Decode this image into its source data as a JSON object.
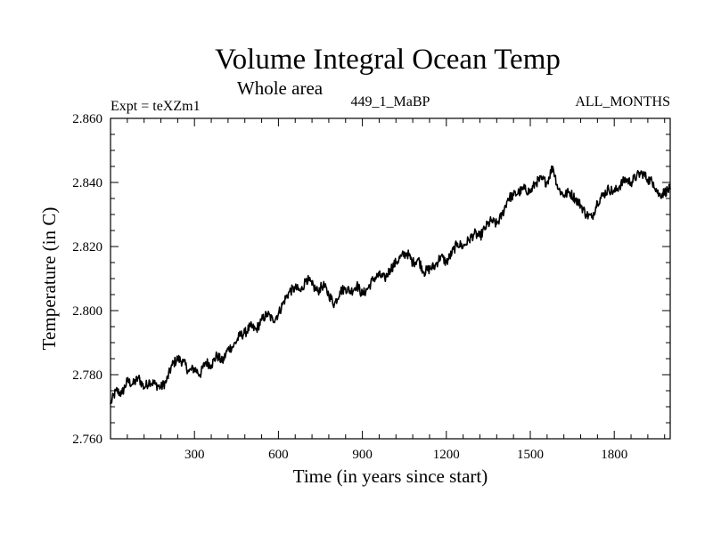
{
  "chart_data": {
    "type": "line",
    "title": "Volume Integral Ocean Temp",
    "subtitle": "Whole area",
    "left_label": "Expt = teXZm1",
    "center_label": "449_1_MaBP",
    "right_label": "ALL_MONTHS",
    "xlabel": "Time (in years since start)",
    "ylabel": "Temperature (in C)",
    "xlim": [
      0,
      2000
    ],
    "ylim": [
      2.76,
      2.86
    ],
    "x_ticks": [
      300,
      600,
      900,
      1200,
      1500,
      1800
    ],
    "x_tick_labels": [
      "300",
      "600",
      "900",
      "1200",
      "1500",
      "1800"
    ],
    "y_ticks": [
      2.76,
      2.78,
      2.8,
      2.82,
      2.84,
      2.86
    ],
    "y_tick_labels": [
      "2.760",
      "2.780",
      "2.800",
      "2.820",
      "2.840",
      "2.860"
    ],
    "grid": false,
    "series": [
      {
        "name": "Volume integral ocean temperature",
        "x": [
          0,
          20,
          40,
          60,
          80,
          100,
          120,
          140,
          160,
          180,
          200,
          220,
          240,
          260,
          280,
          300,
          320,
          340,
          360,
          380,
          400,
          420,
          440,
          460,
          480,
          500,
          520,
          540,
          560,
          580,
          600,
          620,
          640,
          660,
          680,
          700,
          720,
          740,
          760,
          780,
          800,
          820,
          840,
          860,
          880,
          900,
          920,
          940,
          960,
          980,
          1000,
          1020,
          1040,
          1060,
          1080,
          1100,
          1120,
          1140,
          1160,
          1180,
          1200,
          1220,
          1240,
          1260,
          1280,
          1300,
          1320,
          1340,
          1360,
          1380,
          1400,
          1420,
          1440,
          1460,
          1480,
          1500,
          1520,
          1540,
          1560,
          1580,
          1600,
          1620,
          1640,
          1660,
          1680,
          1700,
          1720,
          1740,
          1760,
          1780,
          1800,
          1820,
          1840,
          1860,
          1880,
          1900,
          1920,
          1940,
          1960,
          1980,
          2000
        ],
        "values": [
          2.771,
          2.775,
          2.774,
          2.778,
          2.777,
          2.779,
          2.776,
          2.778,
          2.777,
          2.776,
          2.778,
          2.783,
          2.785,
          2.784,
          2.781,
          2.782,
          2.78,
          2.784,
          2.783,
          2.786,
          2.784,
          2.788,
          2.789,
          2.792,
          2.793,
          2.795,
          2.794,
          2.797,
          2.799,
          2.797,
          2.799,
          2.803,
          2.806,
          2.807,
          2.806,
          2.81,
          2.808,
          2.806,
          2.808,
          2.805,
          2.802,
          2.806,
          2.807,
          2.806,
          2.808,
          2.805,
          2.807,
          2.81,
          2.811,
          2.81,
          2.813,
          2.815,
          2.817,
          2.818,
          2.815,
          2.816,
          2.812,
          2.813,
          2.814,
          2.817,
          2.815,
          2.818,
          2.821,
          2.82,
          2.822,
          2.824,
          2.823,
          2.826,
          2.828,
          2.827,
          2.83,
          2.835,
          2.836,
          2.837,
          2.838,
          2.837,
          2.84,
          2.841,
          2.84,
          2.845,
          2.838,
          2.836,
          2.837,
          2.835,
          2.833,
          2.83,
          2.829,
          2.834,
          2.836,
          2.838,
          2.837,
          2.839,
          2.841,
          2.84,
          2.842,
          2.843,
          2.841,
          2.84,
          2.836,
          2.837,
          2.838
        ]
      }
    ]
  }
}
